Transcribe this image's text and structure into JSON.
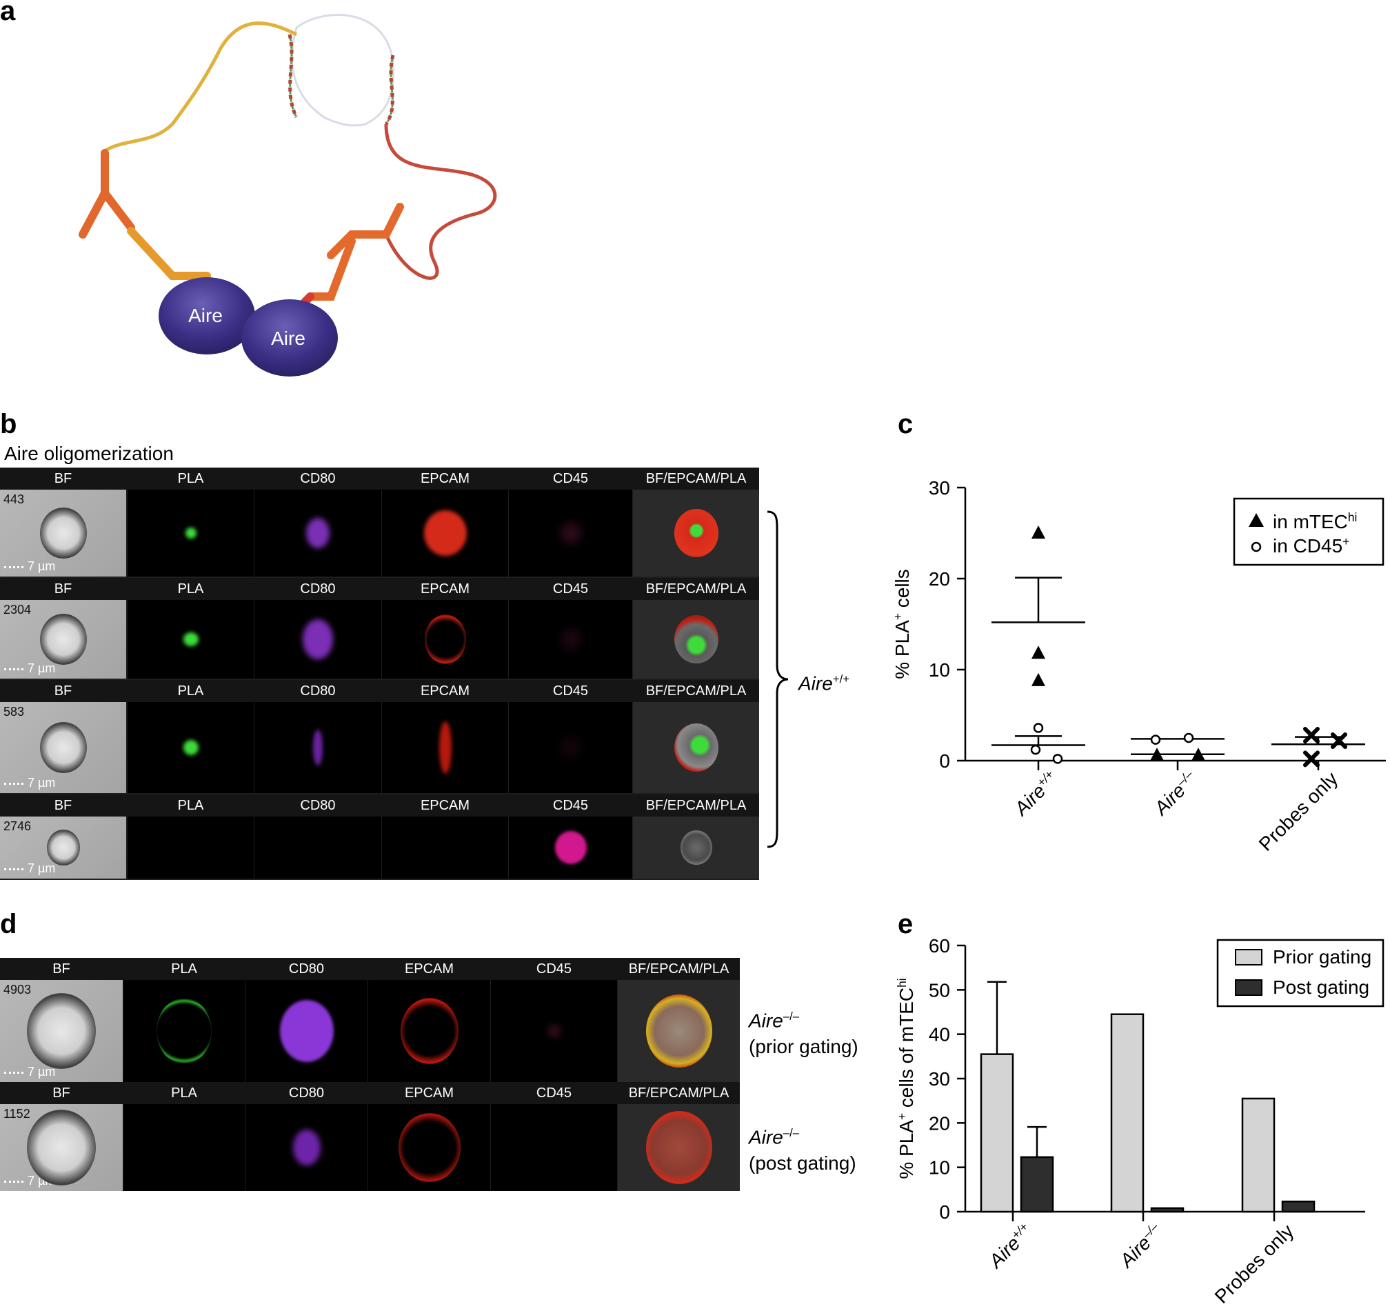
{
  "panels": {
    "a": {
      "letter": "a",
      "protein_labels": [
        "Aire",
        "Aire"
      ]
    },
    "b": {
      "letter": "b",
      "title": "Aire oligomerization",
      "channels": [
        "BF",
        "PLA",
        "CD80",
        "EPCAM",
        "CD45",
        "BF/EPCAM/PLA"
      ],
      "rows": [
        {
          "cell_id": "443",
          "scale": "7 µm"
        },
        {
          "cell_id": "2304",
          "scale": "7 µm"
        },
        {
          "cell_id": "583",
          "scale": "7 µm"
        },
        {
          "cell_id": "2746",
          "scale": "7 µm"
        }
      ],
      "bracket_label": {
        "gene": "Aire",
        "sup": "+/+"
      }
    },
    "c": {
      "letter": "c"
    },
    "d": {
      "letter": "d",
      "channels": [
        "BF",
        "PLA",
        "CD80",
        "EPCAM",
        "CD45",
        "BF/EPCAM/PLA"
      ],
      "rows": [
        {
          "cell_id": "4903",
          "scale": "7 µm",
          "gene": "Aire",
          "sup": "–/–",
          "note": "(prior gating)"
        },
        {
          "cell_id": "1152",
          "scale": "7 µm",
          "gene": "Aire",
          "sup": "–/–",
          "note": "(post gating)"
        }
      ]
    },
    "e": {
      "letter": "e"
    }
  },
  "chart_data": [
    {
      "panel": "c",
      "type": "scatter",
      "ylabel": "% PLA+ cells",
      "ylim": [
        0,
        30
      ],
      "yticks": [
        0,
        10,
        20,
        30
      ],
      "categories": [
        "Aire+/+",
        "Aire–/–",
        "Probes only"
      ],
      "series": [
        {
          "name": "in mTEChi",
          "marker": "triangle",
          "points": [
            {
              "category": "Aire+/+",
              "values": [
                25,
                11.8,
                8.8
              ]
            },
            {
              "category": "Aire–/–",
              "values": [
                0.6,
                0.6
              ]
            }
          ]
        },
        {
          "name": "in CD45+",
          "marker": "circle",
          "points": [
            {
              "category": "Aire+/+",
              "values": [
                3.6,
                1.2,
                0.2
              ]
            },
            {
              "category": "Aire–/–",
              "values": [
                2.3,
                2.5
              ]
            }
          ]
        },
        {
          "name": "",
          "marker": "cross",
          "points": [
            {
              "category": "Probes only",
              "values": [
                2.8,
                2.2,
                0.2
              ]
            }
          ]
        }
      ],
      "group_summaries": [
        {
          "category": "Aire+/+",
          "mtec_mean": 15.2,
          "mtec_sem_upper": 20.1,
          "cd45_mean": 1.7,
          "cd45_sem_upper": 2.7
        },
        {
          "category": "Aire–/–",
          "mtec_mean": 0.7,
          "cd45_mean": 2.4
        },
        {
          "category": "Probes only",
          "mean": 1.8,
          "upper": 2.6
        }
      ],
      "legend": {
        "position": "top-right",
        "entries": [
          {
            "text": "in mTEC",
            "sup": "hi",
            "marker": "triangle"
          },
          {
            "text": "in CD45",
            "sup": "+",
            "marker": "circle"
          }
        ]
      },
      "axis_label": {
        "prefix": "% PLA",
        "sup": "+",
        "suffix": " cells"
      },
      "category_labels": [
        {
          "text": "Aire",
          "sup": "+/+",
          "italic": true
        },
        {
          "text": "Aire",
          "sup": "–/–",
          "italic": true
        },
        {
          "text": "Probes only",
          "sup": "",
          "italic": false
        }
      ]
    },
    {
      "panel": "e",
      "type": "bar",
      "ylabel": "% PLA+ cells of mTEChi",
      "ylim": [
        0,
        60
      ],
      "yticks": [
        0,
        10,
        20,
        30,
        40,
        50,
        60
      ],
      "categories": [
        "Aire+/+",
        "Aire–/–",
        "Probes only"
      ],
      "series": [
        {
          "name": "Prior gating",
          "values": [
            35.5,
            44.5,
            25.5
          ],
          "errors": [
            51.8,
            null,
            null
          ],
          "color": "#d4d4d4"
        },
        {
          "name": "Post gating",
          "values": [
            12.3,
            0.8,
            2.3
          ],
          "errors": [
            19.1,
            null,
            null
          ],
          "color": "#2e2e2e"
        }
      ],
      "legend": {
        "position": "top-right",
        "entries": [
          {
            "text": "Prior gating",
            "color": "#d4d4d4"
          },
          {
            "text": "Post gating",
            "color": "#2e2e2e"
          }
        ]
      },
      "axis_label": {
        "prefix": "% PLA",
        "sup": "+",
        "middle": " cells of mTEC",
        "sup2": "hi"
      },
      "category_labels": [
        {
          "text": "Aire",
          "sup": "+/+",
          "italic": true
        },
        {
          "text": "Aire",
          "sup": "–/–",
          "italic": true
        },
        {
          "text": "Probes only",
          "sup": "",
          "italic": false
        }
      ]
    }
  ]
}
